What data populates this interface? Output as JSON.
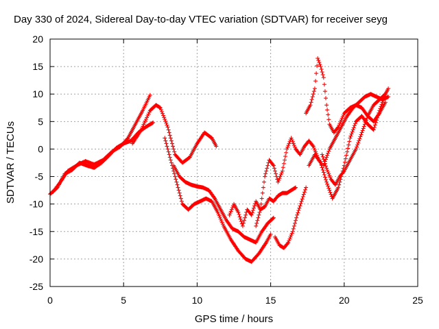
{
  "chart_data": {
    "type": "scatter",
    "title": "Day 330 of 2024, Sidereal Day-to-day VTEC variation (SDTVAR) for receiver seyg",
    "xlabel": "GPS time / hours",
    "ylabel": "SDTVAR / TECUs",
    "xlim": [
      0,
      25
    ],
    "ylim": [
      -25,
      20
    ],
    "xticks": [
      0,
      5,
      10,
      15,
      20,
      25
    ],
    "yticks": [
      -25,
      -20,
      -15,
      -10,
      -5,
      0,
      5,
      10,
      15,
      20
    ],
    "grid": true,
    "marker": "plus",
    "color": "#ff0000",
    "series": [
      {
        "x": [
          0.0,
          0.5,
          1.0,
          1.5,
          2.0,
          2.5,
          3.0,
          3.5,
          4.0,
          4.5,
          5.0,
          5.5,
          6.0,
          6.5,
          7.0
        ],
        "y": [
          -8.2,
          -7.0,
          -4.5,
          -3.8,
          -2.5,
          -3.0,
          -3.4,
          -2.5,
          -1.2,
          0.2,
          1.0,
          1.5,
          3.0,
          4.0,
          4.8
        ]
      },
      {
        "x": [
          0.2,
          0.7,
          1.2,
          1.8,
          2.4,
          3.0,
          3.6,
          4.2,
          4.8,
          5.3,
          5.8,
          6.3,
          6.8
        ],
        "y": [
          -7.8,
          -6.0,
          -4.0,
          -3.0,
          -2.2,
          -2.8,
          -2.0,
          -0.5,
          0.5,
          2.0,
          4.5,
          7.0,
          9.8
        ]
      },
      {
        "x": [
          5.6,
          6.2,
          6.8,
          7.2,
          7.5,
          8.0,
          8.5,
          9.0,
          9.5,
          10.0,
          10.5,
          11.0,
          11.3
        ],
        "y": [
          1.0,
          3.5,
          7.0,
          8.0,
          7.5,
          4.0,
          -1.0,
          -2.5,
          -1.5,
          1.0,
          3.0,
          2.0,
          0.5
        ]
      },
      {
        "x": [
          7.8,
          8.2,
          8.6,
          9.0,
          9.4,
          9.8,
          10.2,
          10.6,
          11.0,
          11.4,
          11.8,
          12.3,
          12.8,
          13.3,
          13.7,
          14.2,
          14.7,
          15.0
        ],
        "y": [
          2.0,
          -2.0,
          -6.0,
          -10.0,
          -11.0,
          -10.0,
          -9.5,
          -9.0,
          -9.5,
          -11.5,
          -14.0,
          -16.5,
          -18.5,
          -20.0,
          -20.5,
          -19.0,
          -17.0,
          -15.5
        ]
      },
      {
        "x": [
          8.4,
          8.8,
          9.2,
          9.6,
          10.0,
          10.4,
          10.8,
          11.2,
          11.6,
          12.0,
          12.4,
          12.8,
          13.2,
          13.6,
          14.0,
          14.4,
          14.8,
          15.2
        ],
        "y": [
          -3.0,
          -5.0,
          -6.0,
          -6.5,
          -6.8,
          -7.0,
          -7.5,
          -9.0,
          -11.0,
          -13.0,
          -14.5,
          -15.0,
          -16.0,
          -16.5,
          -17.0,
          -15.0,
          -13.5,
          -12.5
        ]
      },
      {
        "x": [
          12.2,
          12.5,
          12.8,
          13.1,
          13.4,
          13.7,
          14.0,
          14.3,
          14.6,
          14.9,
          15.2,
          15.5,
          15.8,
          16.1,
          16.4,
          16.7
        ],
        "y": [
          -12.0,
          -10.0,
          -11.5,
          -14.0,
          -11.0,
          -12.0,
          -9.5,
          -11.0,
          -10.5,
          -9.0,
          -9.5,
          -8.5,
          -8.0,
          -8.0,
          -7.5,
          -7.0
        ]
      },
      {
        "x": [
          14.0,
          14.3,
          14.6,
          14.9,
          15.2,
          15.5,
          15.8,
          16.1,
          16.4,
          16.7,
          17.0,
          17.3,
          17.6,
          17.9,
          18.2,
          18.5
        ],
        "y": [
          -14.0,
          -11.0,
          -5.0,
          -2.0,
          -3.0,
          -6.0,
          -4.0,
          0.0,
          2.0,
          0.0,
          -1.0,
          0.5,
          1.5,
          0.5,
          -1.5,
          -3.0
        ]
      },
      {
        "x": [
          15.3,
          15.6,
          15.9,
          16.2,
          16.5,
          16.8,
          17.1,
          17.4
        ],
        "y": [
          -16.0,
          -17.5,
          -18.0,
          -17.0,
          -15.0,
          -12.0,
          -9.5,
          -7.0
        ]
      },
      {
        "x": [
          17.4,
          17.7,
          18.0,
          18.2,
          18.4,
          18.6,
          18.8,
          19.0,
          19.3,
          19.6,
          20.0,
          20.4,
          20.8,
          21.2,
          21.6,
          22.0,
          22.4,
          22.8
        ],
        "y": [
          6.5,
          8.0,
          11.0,
          16.5,
          15.0,
          13.0,
          8.0,
          4.5,
          3.0,
          4.0,
          6.5,
          7.5,
          8.0,
          7.5,
          6.0,
          5.0,
          6.5,
          8.5
        ]
      },
      {
        "x": [
          17.6,
          18.0,
          18.4,
          18.8,
          19.2,
          19.6,
          20.0,
          20.4,
          20.8,
          21.2,
          21.6,
          22.0,
          22.4,
          22.8
        ],
        "y": [
          -3.0,
          -1.0,
          -2.5,
          -6.0,
          -9.0,
          -7.0,
          -3.0,
          2.0,
          5.0,
          6.0,
          4.5,
          3.5,
          7.0,
          10.0
        ]
      },
      {
        "x": [
          18.5,
          18.8,
          19.1,
          19.4,
          19.7,
          20.0,
          20.4,
          20.8,
          21.2,
          21.6,
          22.0,
          22.4,
          22.8,
          23.0
        ],
        "y": [
          -1.0,
          -3.5,
          -5.5,
          -6.5,
          -5.0,
          -4.0,
          -2.0,
          0.0,
          3.0,
          6.0,
          8.0,
          9.0,
          10.0,
          11.0
        ]
      },
      {
        "x": [
          18.6,
          19.0,
          19.4,
          19.8,
          20.2,
          20.6,
          21.0,
          21.4,
          21.8,
          22.2,
          22.6,
          23.0
        ],
        "y": [
          -3.0,
          0.0,
          2.0,
          4.0,
          6.0,
          7.5,
          8.5,
          9.5,
          10.0,
          9.5,
          9.0,
          9.5
        ]
      }
    ]
  }
}
